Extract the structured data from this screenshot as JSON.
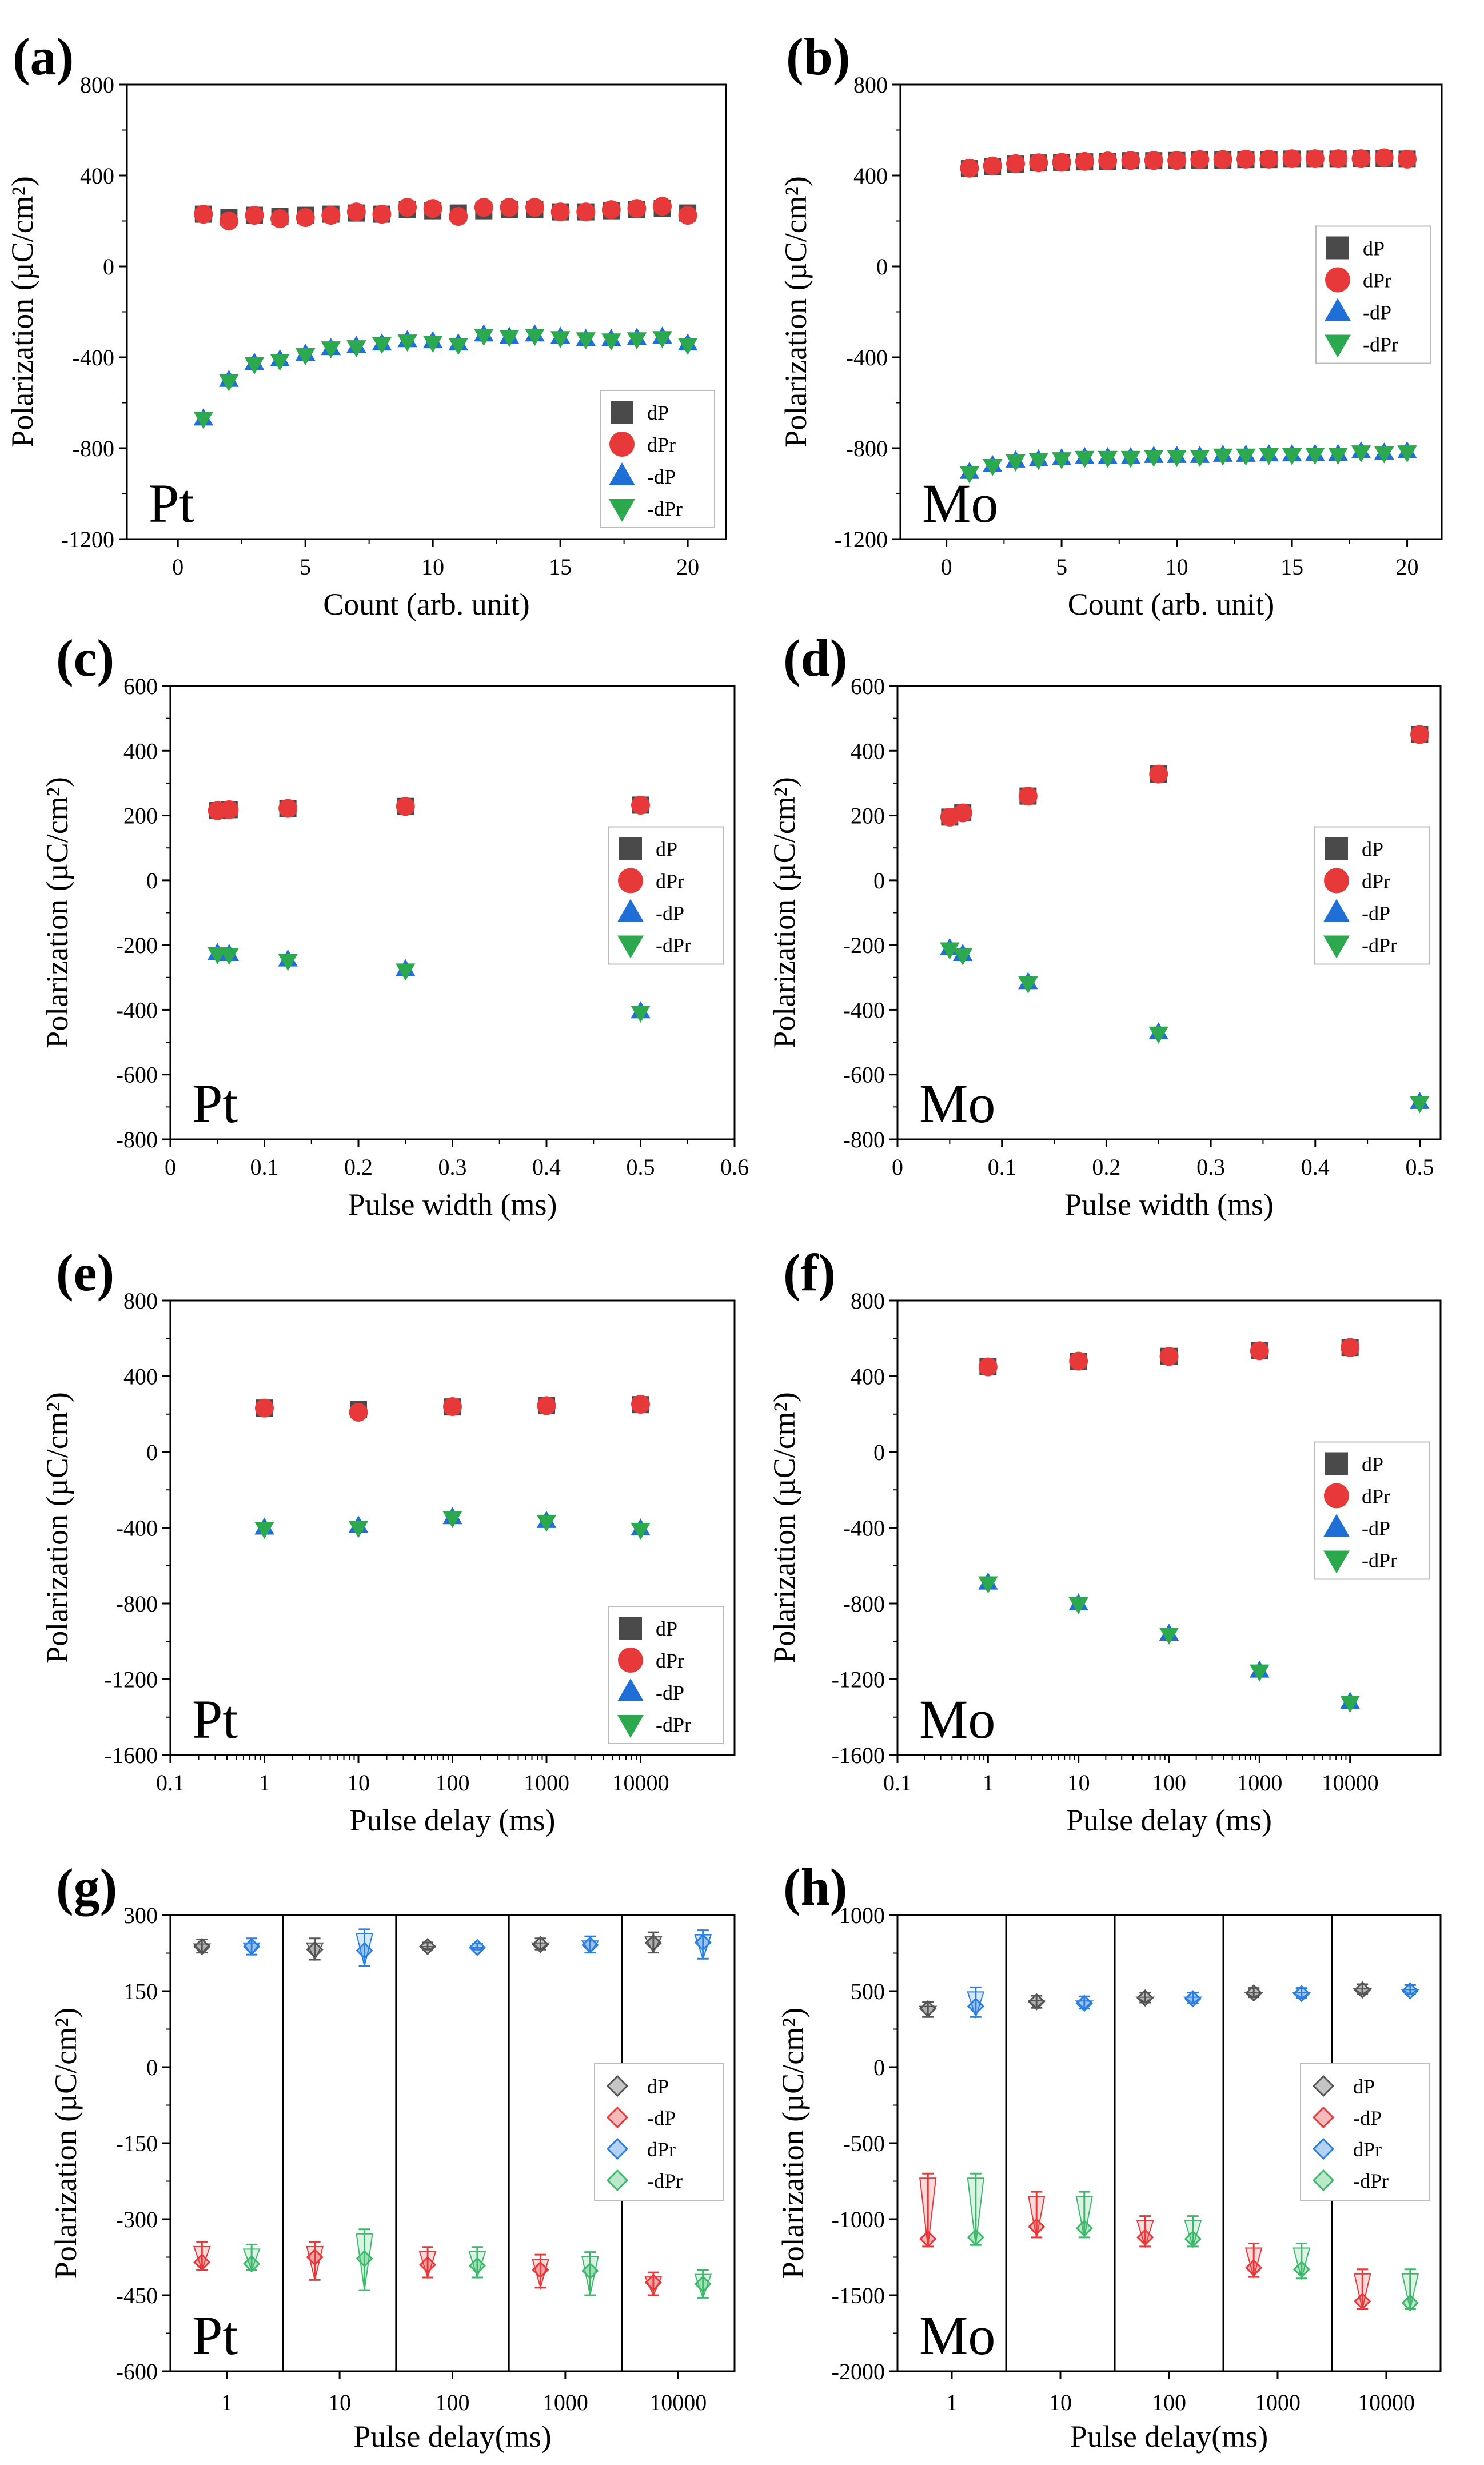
{
  "colors": {
    "dP": "#4a4a4a",
    "dPr": "#e8393a",
    "-dP": "#1f6fd6",
    "-dPr": "#2ca84f",
    "box_dP": "#555555",
    "box_neg_dP": "#e8393a",
    "box_dPr": "#2b7fe0",
    "box_neg_dPr": "#3cb96a"
  },
  "chart_data": [
    {
      "id": "a",
      "panel_label": "(a)",
      "material": "Pt",
      "type": "scatter",
      "xlabel": "Count (arb. unit)",
      "ylabel": "Polarization (µC/cm²)",
      "xlim": [
        -2,
        21.5
      ],
      "ylim": [
        -1200,
        800
      ],
      "xticks": [
        0,
        5,
        10,
        15,
        20
      ],
      "yticks": [
        -1200,
        -800,
        -400,
        0,
        400,
        800
      ],
      "legend": [
        "dP",
        "dPr",
        "-dP",
        "-dPr"
      ],
      "legend_position": "bottom-right",
      "x": [
        1,
        2,
        3,
        4,
        5,
        6,
        7,
        8,
        9,
        10,
        11,
        12,
        13,
        14,
        15,
        16,
        17,
        18,
        19,
        20
      ],
      "series": [
        {
          "name": "dP",
          "marker": "square",
          "values": [
            230,
            215,
            225,
            220,
            225,
            230,
            235,
            230,
            250,
            245,
            235,
            245,
            250,
            250,
            240,
            240,
            245,
            250,
            255,
            235
          ]
        },
        {
          "name": "dPr",
          "marker": "circle",
          "values": [
            230,
            200,
            225,
            210,
            215,
            225,
            240,
            230,
            260,
            255,
            220,
            260,
            260,
            260,
            240,
            240,
            250,
            255,
            265,
            225
          ]
        },
        {
          "name": "-dP",
          "marker": "triangle-up",
          "values": [
            -670,
            -500,
            -425,
            -410,
            -385,
            -360,
            -350,
            -340,
            -325,
            -330,
            -340,
            -300,
            -310,
            -300,
            -310,
            -320,
            -320,
            -315,
            -310,
            -340
          ]
        },
        {
          "name": "-dPr",
          "marker": "triangle-down",
          "values": [
            -670,
            -505,
            -430,
            -415,
            -390,
            -360,
            -355,
            -340,
            -330,
            -335,
            -345,
            -305,
            -310,
            -305,
            -315,
            -320,
            -325,
            -320,
            -315,
            -345
          ]
        }
      ]
    },
    {
      "id": "b",
      "panel_label": "(b)",
      "material": "Mo",
      "type": "scatter",
      "xlabel": "Count (arb. unit)",
      "ylabel": "Polarization (µC/cm²)",
      "xlim": [
        -2,
        21.5
      ],
      "ylim": [
        -1200,
        800
      ],
      "xticks": [
        0,
        5,
        10,
        15,
        20
      ],
      "yticks": [
        -1200,
        -800,
        -400,
        0,
        400,
        800
      ],
      "legend": [
        "dP",
        "dPr",
        "-dP",
        "-dPr"
      ],
      "legend_position": "center-right",
      "x": [
        1,
        2,
        3,
        4,
        5,
        6,
        7,
        8,
        9,
        10,
        11,
        12,
        13,
        14,
        15,
        16,
        17,
        18,
        19,
        20
      ],
      "series": [
        {
          "name": "dP",
          "marker": "square",
          "values": [
            430,
            440,
            450,
            455,
            458,
            460,
            462,
            465,
            465,
            466,
            468,
            468,
            470,
            470,
            472,
            472,
            472,
            473,
            475,
            472
          ]
        },
        {
          "name": "dPr",
          "marker": "circle",
          "values": [
            432,
            442,
            452,
            456,
            458,
            462,
            464,
            466,
            466,
            466,
            470,
            470,
            472,
            472,
            474,
            474,
            474,
            474,
            478,
            472
          ]
        },
        {
          "name": "-dP",
          "marker": "triangle-up",
          "values": [
            -905,
            -875,
            -855,
            -850,
            -845,
            -840,
            -840,
            -840,
            -835,
            -835,
            -835,
            -830,
            -830,
            -828,
            -828,
            -826,
            -826,
            -815,
            -820,
            -815
          ]
        },
        {
          "name": "-dPr",
          "marker": "triangle-down",
          "values": [
            -910,
            -878,
            -858,
            -852,
            -848,
            -842,
            -842,
            -842,
            -838,
            -838,
            -838,
            -832,
            -832,
            -830,
            -830,
            -828,
            -828,
            -818,
            -822,
            -818
          ]
        }
      ]
    },
    {
      "id": "c",
      "panel_label": "(c)",
      "material": "Pt",
      "type": "scatter",
      "xlabel": "Pulse width (ms)",
      "ylabel": "Polarization (µC/cm²)",
      "xlim": [
        0.0,
        0.6
      ],
      "ylim": [
        -800,
        600
      ],
      "xticks": [
        0.0,
        0.1,
        0.2,
        0.3,
        0.4,
        0.5,
        0.6
      ],
      "yticks": [
        -800,
        -600,
        -400,
        -200,
        0,
        200,
        400,
        600
      ],
      "legend": [
        "dP",
        "dPr",
        "-dP",
        "-dPr"
      ],
      "legend_position": "center-right",
      "x": [
        0.05,
        0.0625,
        0.125,
        0.25,
        0.5
      ],
      "series": [
        {
          "name": "dP",
          "marker": "square",
          "values": [
            215,
            218,
            222,
            228,
            232
          ]
        },
        {
          "name": "dPr",
          "marker": "circle",
          "values": [
            215,
            218,
            222,
            228,
            232
          ]
        },
        {
          "name": "-dP",
          "marker": "triangle-up",
          "values": [
            -225,
            -228,
            -245,
            -275,
            -405
          ]
        },
        {
          "name": "-dPr",
          "marker": "triangle-down",
          "values": [
            -228,
            -230,
            -248,
            -278,
            -408
          ]
        }
      ]
    },
    {
      "id": "d",
      "panel_label": "(d)",
      "material": "Mo",
      "type": "scatter",
      "xlabel": "Pulse width (ms)",
      "ylabel": "Polarization (µC/cm²)",
      "xlim": [
        0.0,
        0.52
      ],
      "ylim": [
        -800,
        600
      ],
      "xticks": [
        0.0,
        0.1,
        0.2,
        0.3,
        0.4,
        0.5
      ],
      "yticks": [
        -800,
        -600,
        -400,
        -200,
        0,
        200,
        400,
        600
      ],
      "legend": [
        "dP",
        "dPr",
        "-dP",
        "-dPr"
      ],
      "legend_position": "center-right",
      "x": [
        0.05,
        0.0625,
        0.125,
        0.25,
        0.5
      ],
      "series": [
        {
          "name": "dP",
          "marker": "square",
          "values": [
            195,
            208,
            260,
            328,
            450
          ]
        },
        {
          "name": "dPr",
          "marker": "circle",
          "values": [
            195,
            208,
            260,
            328,
            450
          ]
        },
        {
          "name": "-dP",
          "marker": "triangle-up",
          "values": [
            -210,
            -228,
            -315,
            -470,
            -685
          ]
        },
        {
          "name": "-dPr",
          "marker": "triangle-down",
          "values": [
            -213,
            -231,
            -318,
            -473,
            -688
          ]
        }
      ]
    },
    {
      "id": "e",
      "panel_label": "(e)",
      "material": "Pt",
      "type": "scatter",
      "xscale": "log",
      "xlabel": "Pulse delay (ms)",
      "ylabel": "Polarization (µC/cm²)",
      "xlim": [
        0.1,
        100000
      ],
      "ylim": [
        -1600,
        800
      ],
      "xticks": [
        0.1,
        1,
        10,
        100,
        1000,
        10000
      ],
      "xtick_labels": [
        "0.1",
        "1",
        "10",
        "100",
        "1000",
        "10000"
      ],
      "yticks": [
        -1600,
        -1200,
        -800,
        -400,
        0,
        400,
        800
      ],
      "legend": [
        "dP",
        "dPr",
        "-dP",
        "-dPr"
      ],
      "legend_position": "bottom-right",
      "x": [
        1,
        10,
        100,
        1000,
        10000
      ],
      "series": [
        {
          "name": "dP",
          "marker": "square",
          "values": [
            232,
            225,
            238,
            245,
            250
          ]
        },
        {
          "name": "dPr",
          "marker": "circle",
          "values": [
            232,
            210,
            240,
            245,
            252
          ]
        },
        {
          "name": "-dP",
          "marker": "triangle-up",
          "values": [
            -400,
            -390,
            -345,
            -365,
            -405
          ]
        },
        {
          "name": "-dPr",
          "marker": "triangle-down",
          "values": [
            -405,
            -400,
            -348,
            -368,
            -410
          ]
        }
      ]
    },
    {
      "id": "f",
      "panel_label": "(f)",
      "material": "Mo",
      "type": "scatter",
      "xscale": "log",
      "xlabel": "Pulse delay (ms)",
      "ylabel": "Polarization (µC/cm²)",
      "xlim": [
        0.1,
        100000
      ],
      "ylim": [
        -1600,
        800
      ],
      "xticks": [
        0.1,
        1,
        10,
        100,
        1000,
        10000
      ],
      "xtick_labels": [
        "0.1",
        "1",
        "10",
        "100",
        "1000",
        "10000"
      ],
      "yticks": [
        -1600,
        -1200,
        -800,
        -400,
        0,
        400,
        800
      ],
      "legend": [
        "dP",
        "dPr",
        "-dP",
        "-dPr"
      ],
      "legend_position": "center-right",
      "x": [
        1,
        10,
        100,
        1000,
        10000
      ],
      "series": [
        {
          "name": "dP",
          "marker": "square",
          "values": [
            450,
            480,
            505,
            535,
            552
          ]
        },
        {
          "name": "dPr",
          "marker": "circle",
          "values": [
            450,
            480,
            505,
            535,
            552
          ]
        },
        {
          "name": "-dP",
          "marker": "triangle-up",
          "values": [
            -690,
            -800,
            -960,
            -1155,
            -1320
          ]
        },
        {
          "name": "-dPr",
          "marker": "triangle-down",
          "values": [
            -693,
            -803,
            -963,
            -1158,
            -1323
          ]
        }
      ]
    },
    {
      "id": "g",
      "panel_label": "(g)",
      "material": "Pt",
      "type": "box",
      "xlabel": "Pulse delay(ms)",
      "ylabel": "Polarization (µC/cm²)",
      "ylim": [
        -600,
        300
      ],
      "yticks": [
        -600,
        -450,
        -300,
        -150,
        0,
        150,
        300
      ],
      "categories": [
        "1",
        "10",
        "100",
        "1000",
        "10000"
      ],
      "legend": [
        "dP",
        "-dP",
        "dPr",
        "-dPr"
      ],
      "legend_position": "center-right",
      "series": [
        {
          "name": "dP",
          "mean": [
            238,
            232,
            238,
            242,
            245
          ],
          "low": [
            226,
            212,
            232,
            232,
            226
          ],
          "high": [
            252,
            254,
            246,
            254,
            266
          ]
        },
        {
          "name": "dPr",
          "mean": [
            238,
            230,
            236,
            241,
            246
          ],
          "low": [
            222,
            200,
            232,
            226,
            214
          ],
          "high": [
            254,
            272,
            244,
            258,
            270
          ]
        },
        {
          "name": "-dP",
          "mean": [
            -385,
            -375,
            -390,
            -400,
            -425
          ],
          "low": [
            -400,
            -420,
            -415,
            -435,
            -450
          ],
          "high": [
            -345,
            -345,
            -355,
            -370,
            -405
          ]
        },
        {
          "name": "-dPr",
          "mean": [
            -388,
            -378,
            -392,
            -402,
            -428
          ],
          "low": [
            -400,
            -440,
            -415,
            -450,
            -455
          ],
          "high": [
            -350,
            -320,
            -355,
            -365,
            -400
          ]
        }
      ]
    },
    {
      "id": "h",
      "panel_label": "(h)",
      "material": "Mo",
      "type": "box",
      "xlabel": "Pulse delay(ms)",
      "ylabel": "Polarization (µC/cm²)",
      "ylim": [
        -2000,
        1000
      ],
      "yticks": [
        -2000,
        -1500,
        -1000,
        -500,
        0,
        500,
        1000
      ],
      "categories": [
        "1",
        "10",
        "100",
        "1000",
        "10000"
      ],
      "legend": [
        "dP",
        "-dP",
        "dPr",
        "-dPr"
      ],
      "legend_position": "center-right",
      "series": [
        {
          "name": "dP",
          "mean": [
            385,
            430,
            455,
            488,
            508
          ],
          "low": [
            330,
            390,
            425,
            460,
            480
          ],
          "high": [
            430,
            470,
            490,
            520,
            545
          ]
        },
        {
          "name": "dPr",
          "mean": [
            400,
            420,
            450,
            484,
            502
          ],
          "low": [
            330,
            385,
            420,
            455,
            480
          ],
          "high": [
            525,
            465,
            490,
            520,
            540
          ]
        },
        {
          "name": "-dP",
          "mean": [
            -1130,
            -1050,
            -1120,
            -1320,
            -1540
          ],
          "low": [
            -1180,
            -1120,
            -1180,
            -1380,
            -1590
          ],
          "high": [
            -700,
            -820,
            -980,
            -1160,
            -1330
          ]
        },
        {
          "name": "-dPr",
          "mean": [
            -1120,
            -1060,
            -1130,
            -1330,
            -1550
          ],
          "low": [
            -1170,
            -1120,
            -1180,
            -1390,
            -1590
          ],
          "high": [
            -700,
            -820,
            -980,
            -1160,
            -1330
          ]
        }
      ]
    }
  ]
}
